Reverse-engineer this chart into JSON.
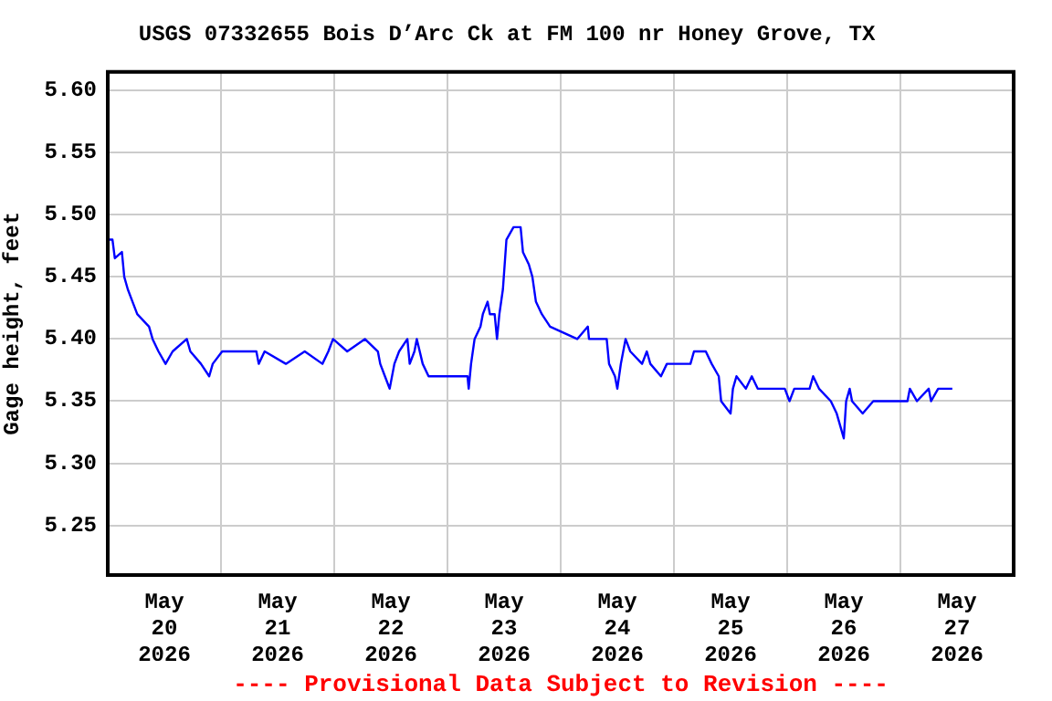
{
  "chart_data": {
    "type": "line",
    "title": "USGS 07332655 Bois D’Arc Ck at FM 100 nr Honey Grove, TX",
    "ylabel": "Gage height, feet",
    "annotations": [
      "---- Provisional Data Subject to Revision ----"
    ],
    "x": [
      "2026-05-20T00:00",
      "2026-05-20T01:00",
      "2026-05-20T01:30",
      "2026-05-20T03:00",
      "2026-05-20T03:30",
      "2026-05-20T04:15",
      "2026-05-20T05:15",
      "2026-05-20T06:15",
      "2026-05-20T08:45",
      "2026-05-20T09:30",
      "2026-05-20T10:45",
      "2026-05-20T12:15",
      "2026-05-20T13:45",
      "2026-05-20T16:45",
      "2026-05-20T17:30",
      "2026-05-20T19:45",
      "2026-05-20T21:30",
      "2026-05-20T22:15",
      "2026-05-21T00:15",
      "2026-05-21T07:30",
      "2026-05-21T08:00",
      "2026-05-21T09:15",
      "2026-05-21T13:45",
      "2026-05-21T17:45",
      "2026-05-21T21:30",
      "2026-05-21T22:45",
      "2026-05-21T23:45",
      "2026-05-22T02:45",
      "2026-05-22T06:30",
      "2026-05-22T09:15",
      "2026-05-22T09:45",
      "2026-05-22T10:45",
      "2026-05-22T11:45",
      "2026-05-22T12:45",
      "2026-05-22T13:45",
      "2026-05-22T15:30",
      "2026-05-22T16:00",
      "2026-05-22T17:00",
      "2026-05-22T17:30",
      "2026-05-22T18:45",
      "2026-05-22T20:00",
      "2026-05-23T04:15",
      "2026-05-23T04:30",
      "2026-05-23T05:00",
      "2026-05-23T05:45",
      "2026-05-23T07:00",
      "2026-05-23T07:30",
      "2026-05-23T08:30",
      "2026-05-23T09:00",
      "2026-05-23T10:00",
      "2026-05-23T10:30",
      "2026-05-23T11:00",
      "2026-05-23T11:45",
      "2026-05-23T12:30",
      "2026-05-23T14:00",
      "2026-05-23T15:30",
      "2026-05-23T16:00",
      "2026-05-23T17:15",
      "2026-05-23T18:00",
      "2026-05-23T18:45",
      "2026-05-23T20:00",
      "2026-05-23T21:45",
      "2026-05-24T03:30",
      "2026-05-24T05:45",
      "2026-05-24T06:00",
      "2026-05-24T09:45",
      "2026-05-24T10:15",
      "2026-05-24T11:30",
      "2026-05-24T12:00",
      "2026-05-24T12:45",
      "2026-05-24T13:45",
      "2026-05-24T14:45",
      "2026-05-24T17:15",
      "2026-05-24T18:15",
      "2026-05-24T19:00",
      "2026-05-24T21:15",
      "2026-05-24T22:30",
      "2026-05-25T03:30",
      "2026-05-25T04:15",
      "2026-05-25T06:45",
      "2026-05-25T08:00",
      "2026-05-25T09:30",
      "2026-05-25T10:00",
      "2026-05-25T12:00",
      "2026-05-25T12:30",
      "2026-05-25T13:15",
      "2026-05-25T15:15",
      "2026-05-25T16:30",
      "2026-05-25T17:45",
      "2026-05-25T23:30",
      "2026-05-26T00:30",
      "2026-05-26T01:30",
      "2026-05-26T04:45",
      "2026-05-26T05:30",
      "2026-05-26T06:45",
      "2026-05-26T09:15",
      "2026-05-26T10:30",
      "2026-05-26T11:15",
      "2026-05-26T12:00",
      "2026-05-26T12:30",
      "2026-05-26T13:15",
      "2026-05-26T13:45",
      "2026-05-26T16:00",
      "2026-05-26T18:15",
      "2026-05-27T01:30",
      "2026-05-27T02:00",
      "2026-05-27T03:30",
      "2026-05-27T06:00",
      "2026-05-27T06:30",
      "2026-05-27T08:00",
      "2026-05-27T11:00"
    ],
    "series": [
      {
        "color": "#0000ff",
        "values": [
          5.48,
          5.48,
          5.465,
          5.47,
          5.45,
          5.44,
          5.43,
          5.42,
          5.41,
          5.4,
          5.39,
          5.38,
          5.39,
          5.4,
          5.39,
          5.38,
          5.37,
          5.38,
          5.39,
          5.39,
          5.38,
          5.39,
          5.38,
          5.39,
          5.38,
          5.39,
          5.4,
          5.39,
          5.4,
          5.39,
          5.38,
          5.37,
          5.36,
          5.38,
          5.39,
          5.4,
          5.38,
          5.39,
          5.4,
          5.38,
          5.37,
          5.37,
          5.36,
          5.38,
          5.4,
          5.41,
          5.42,
          5.43,
          5.42,
          5.42,
          5.4,
          5.42,
          5.44,
          5.48,
          5.49,
          5.49,
          5.47,
          5.46,
          5.45,
          5.43,
          5.42,
          5.41,
          5.4,
          5.41,
          5.4,
          5.4,
          5.38,
          5.37,
          5.36,
          5.38,
          5.4,
          5.39,
          5.38,
          5.39,
          5.38,
          5.37,
          5.38,
          5.38,
          5.39,
          5.39,
          5.38,
          5.37,
          5.35,
          5.34,
          5.36,
          5.37,
          5.36,
          5.37,
          5.36,
          5.36,
          5.35,
          5.36,
          5.36,
          5.37,
          5.36,
          5.35,
          5.34,
          5.33,
          5.32,
          5.35,
          5.36,
          5.35,
          5.34,
          5.35,
          5.35,
          5.36,
          5.35,
          5.36,
          5.35,
          5.36,
          5.36
        ]
      }
    ],
    "xlim": [
      "2026-05-20T00:00",
      "2026-05-28T00:00"
    ],
    "xticks": [
      {
        "value": "2026-05-20T00:00",
        "label": null
      },
      {
        "value": "2026-05-20T12:00",
        "label": "May\n20\n2026"
      },
      {
        "value": "2026-05-21T00:00",
        "label": null
      },
      {
        "value": "2026-05-21T12:00",
        "label": "May\n21\n2026"
      },
      {
        "value": "2026-05-22T00:00",
        "label": null
      },
      {
        "value": "2026-05-22T12:00",
        "label": "May\n22\n2026"
      },
      {
        "value": "2026-05-23T00:00",
        "label": null
      },
      {
        "value": "2026-05-23T12:00",
        "label": "May\n23\n2026"
      },
      {
        "value": "2026-05-24T00:00",
        "label": null
      },
      {
        "value": "2026-05-24T12:00",
        "label": "May\n24\n2026"
      },
      {
        "value": "2026-05-25T00:00",
        "label": null
      },
      {
        "value": "2026-05-25T12:00",
        "label": "May\n25\n2026"
      },
      {
        "value": "2026-05-26T00:00",
        "label": null
      },
      {
        "value": "2026-05-26T12:00",
        "label": "May\n26\n2026"
      },
      {
        "value": "2026-05-27T00:00",
        "label": null
      },
      {
        "value": "2026-05-27T12:00",
        "label": "May\n27\n2026"
      },
      {
        "value": "2026-05-28T00:00",
        "label": null
      }
    ],
    "ylim": [
      5.21,
      5.615
    ],
    "yticks": [
      5.25,
      {
        "value": 5.3,
        "label": "5.30"
      },
      5.35,
      {
        "value": 5.4,
        "label": "5.40"
      },
      5.45,
      {
        "value": 5.5,
        "label": "5.50"
      },
      5.55,
      {
        "value": 5.6,
        "label": "5.60"
      }
    ],
    "grid": true,
    "legend": false,
    "marker": "none",
    "line_style": "solid"
  }
}
